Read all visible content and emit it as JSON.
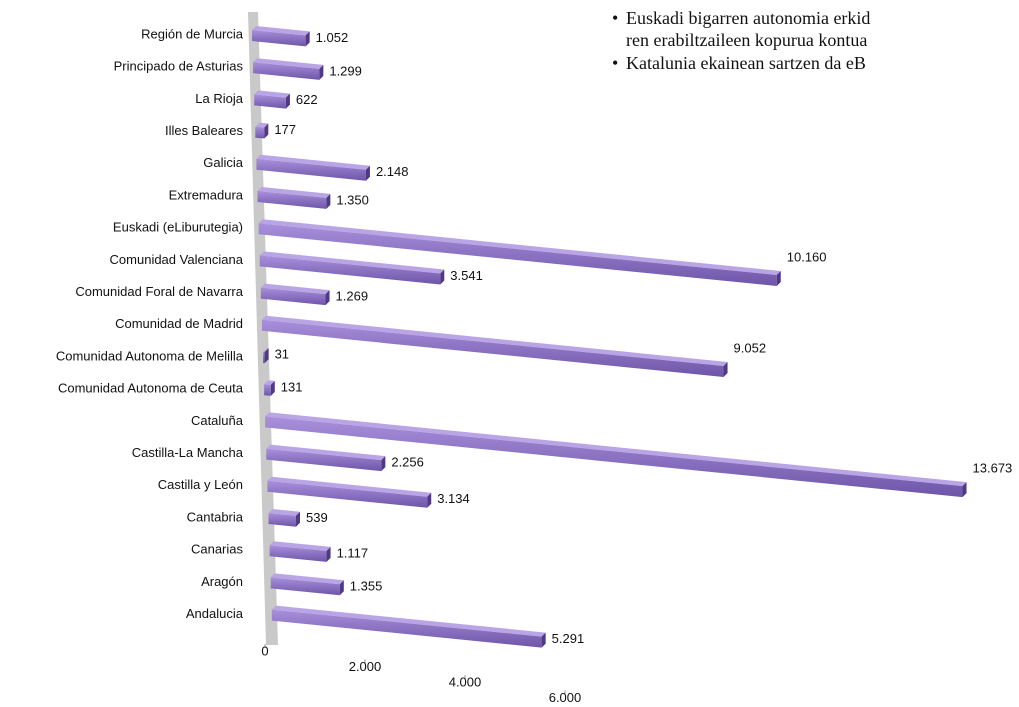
{
  "chart_data": {
    "type": "bar3d",
    "categories": [
      "Región de Murcia",
      "Principado de Asturias",
      "La Rioja",
      "Illes Baleares",
      "Galicia",
      "Extremadura",
      "Euskadi (eLiburutegia)",
      "Comunidad Valenciana",
      "Comunidad Foral de Navarra",
      "Comunidad de Madrid",
      "Comunidad Autonoma de Melilla",
      "Comunidad Autonoma de Ceuta",
      "Cataluña",
      "Castilla-La Mancha",
      "Castilla y León",
      "Cantabria",
      "Canarias",
      "Aragón",
      "Andalucia"
    ],
    "values": [
      1052,
      1299,
      622,
      177,
      2148,
      1350,
      null,
      3541,
      1269,
      null,
      31,
      131,
      null,
      2256,
      3134,
      539,
      1117,
      1355,
      5291
    ],
    "value_labels": [
      "1.052",
      "1.299",
      "622",
      "177",
      "2.148",
      "1.350",
      null,
      "3.541",
      "1.269",
      null,
      "31",
      "131",
      null,
      "2.256",
      "3.134",
      "539",
      "1.117",
      "1.355",
      "5.291"
    ],
    "extra_values": [
      {
        "row": 6,
        "value": 10160,
        "label": "10.160"
      },
      {
        "row": 9,
        "value": 9052,
        "label": "9.052"
      },
      {
        "row": 12,
        "value": 13673,
        "label": "13.673"
      }
    ],
    "color": "#8e74c4",
    "xlim": [
      0,
      14000
    ],
    "xticks": [
      0,
      {
        "value": 2000,
        "label": "2.000"
      },
      {
        "value": 4000,
        "label": "4.000"
      },
      {
        "value": 6000,
        "label": "6.000"
      }
    ],
    "annotations": [
      "Euskadi bigarren autonomia erkid",
      "ren erabiltzaileen kopurua kontua",
      "Katalunia ekainean sartzen da eB"
    ]
  }
}
